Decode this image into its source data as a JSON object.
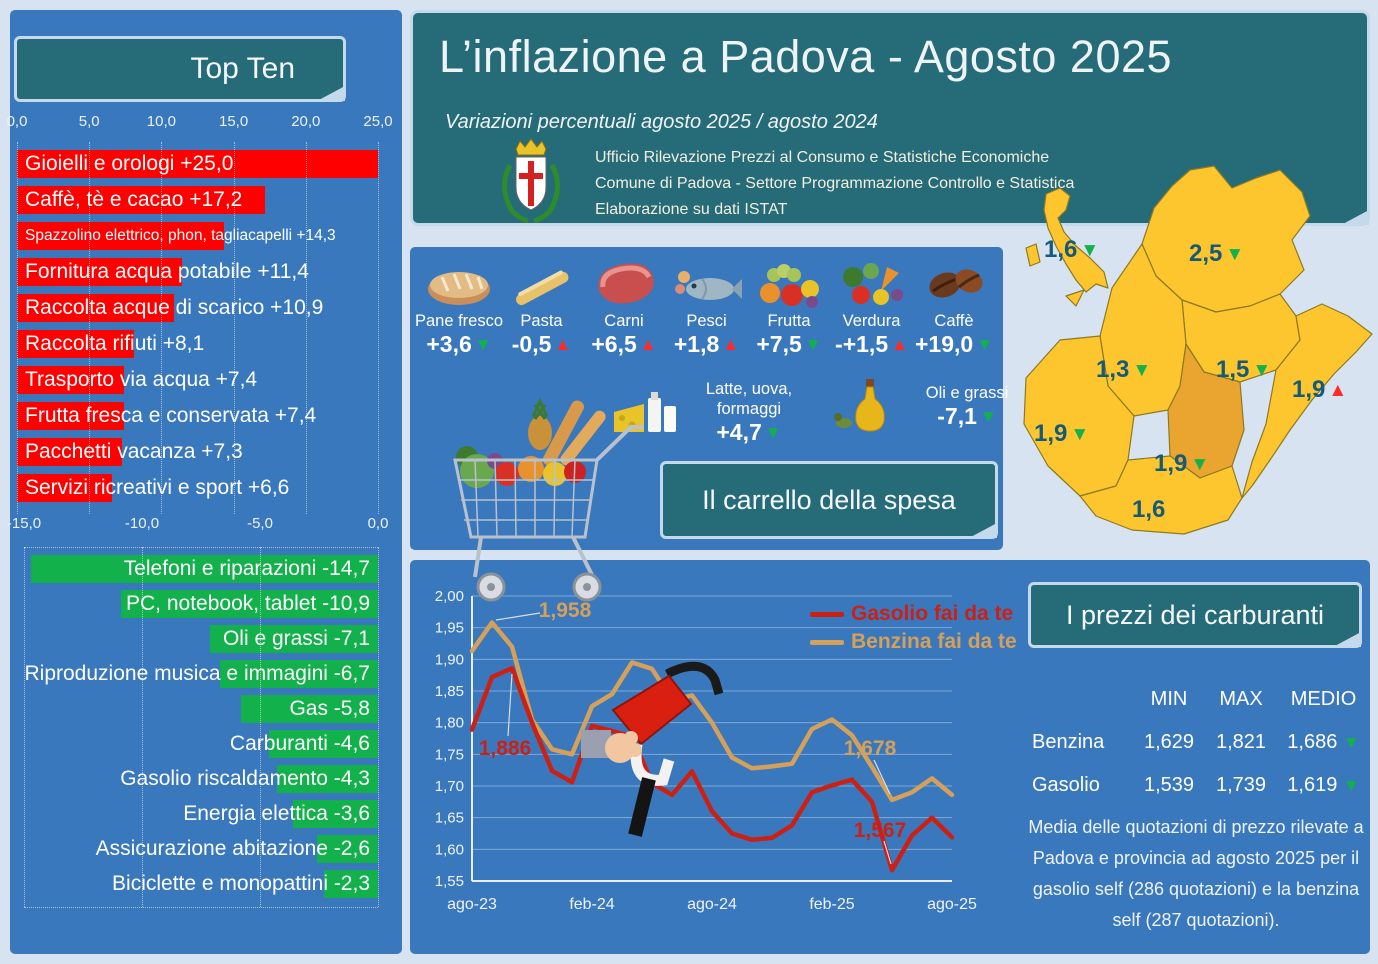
{
  "colors": {
    "page_bg": "#d7e3f1",
    "panel_blue": "#3a78bd",
    "teal": "#266b78",
    "bar_red": "#fe0000",
    "bar_green": "#12b14b",
    "map_gold": "#fdc62f",
    "map_gold_dark": "#e9a52f",
    "gasolio_line": "#cc2015",
    "benzina_line": "#d4a05a"
  },
  "banner": {
    "title": "L’inflazione a Padova - Agosto 2025",
    "subtitle": "Variazioni percentuali agosto 2025 / agosto 2024",
    "org_lines": [
      "Ufficio Rilevazione Prezzi al Consumo e Statistiche Economiche",
      "Comune di Padova -  Settore Programmazione Controllo e Statistica",
      "Elaborazione su dati ISTAT"
    ]
  },
  "top_ten": {
    "title": "Top Ten"
  },
  "carrello": {
    "title": "Il carrello della spesa",
    "items_row1": [
      {
        "icon": "bread-icon",
        "label": "Pane fresco",
        "value": "+3,6",
        "trend": "down"
      },
      {
        "icon": "pasta-icon",
        "label": "Pasta",
        "value": "-0,5",
        "trend": "up"
      },
      {
        "icon": "meat-icon",
        "label": "Carni",
        "value": "+6,5",
        "trend": "up"
      },
      {
        "icon": "fish-icon",
        "label": "Pesci",
        "value": "+1,8",
        "trend": "up"
      },
      {
        "icon": "fruit-icon",
        "label": "Frutta",
        "value": "+7,5",
        "trend": "down"
      },
      {
        "icon": "vegetables-icon",
        "label": "Verdura",
        "value": "-+1,5",
        "trend": "up"
      },
      {
        "icon": "coffee-icon",
        "label": "Caffè",
        "value": "+19,0",
        "trend": "down"
      }
    ],
    "items_row2": [
      {
        "icon": "dairy-icon",
        "label": "Latte, uova, formaggi",
        "value": "+4,7",
        "trend": "down"
      },
      {
        "icon": "oil-icon",
        "label": "Oli e grassi",
        "value": "-7,1",
        "trend": "down"
      }
    ]
  },
  "veneto_map": {
    "labels": [
      {
        "id": "italia",
        "value": "1,6",
        "trend": "down"
      },
      {
        "id": "belluno",
        "value": "2,5",
        "trend": "down"
      },
      {
        "id": "vicenza",
        "value": "1,3",
        "trend": "down"
      },
      {
        "id": "treviso",
        "value": "1,5",
        "trend": "down"
      },
      {
        "id": "venezia",
        "value": "1,9",
        "trend": "up"
      },
      {
        "id": "verona",
        "value": "1,9",
        "trend": "down"
      },
      {
        "id": "padova",
        "value": "1,9",
        "trend": "down"
      },
      {
        "id": "rovigo",
        "value": "1,6",
        "trend": "none"
      }
    ]
  },
  "fuel": {
    "title": "I prezzi dei carburanti",
    "note": "Media delle quotazioni di prezzo rilevate a Padova e provincia ad agosto 2025 per il gasolio self (286 quotazioni) e la benzina self (287 quotazioni).",
    "table": {
      "headers": [
        "MIN",
        "MAX",
        "MEDIO"
      ],
      "rows": [
        {
          "name": "Benzina",
          "min": "1,629",
          "max": "1,821",
          "medio": "1,686",
          "trend": "down"
        },
        {
          "name": "Gasolio",
          "min": "1,539",
          "max": "1,739",
          "medio": "1,619",
          "trend": "down"
        }
      ]
    }
  },
  "chart_data": [
    {
      "type": "bar",
      "title": "Top Ten",
      "orientation": "horizontal",
      "increases": {
        "xlim": [
          0,
          25
        ],
        "ticks": [
          "0,0",
          "5,0",
          "10,0",
          "15,0",
          "20,0",
          "25,0"
        ],
        "color": "#fe0000",
        "items": [
          {
            "text": "Gioielli e orologi +25,0",
            "value": 25.0
          },
          {
            "text": "Caffè, tè e cacao +17,2",
            "value": 17.2
          },
          {
            "text": "Spazzolino elettrico, phon, tagliacapelli +14,3",
            "value": 14.3
          },
          {
            "text": "Fornitura acqua potabile +11,4",
            "value": 11.4
          },
          {
            "text": "Raccolta acque di scarico +10,9",
            "value": 10.9
          },
          {
            "text": "Raccolta rifiuti +8,1",
            "value": 8.1
          },
          {
            "text": "Trasporto via acqua +7,4",
            "value": 7.4
          },
          {
            "text": "Frutta fresca e conservata +7,4",
            "value": 7.4
          },
          {
            "text": "Pacchetti vacanza +7,3",
            "value": 7.3
          },
          {
            "text": "Servizi ricreativi e sport +6,6",
            "value": 6.6
          }
        ]
      },
      "decreases": {
        "xlim": [
          -15,
          0
        ],
        "ticks": [
          "-15,0",
          "-10,0",
          "-5,0",
          "0,0"
        ],
        "color": "#12b14b",
        "items": [
          {
            "text": "Telefoni e riparazioni -14,7",
            "value": -14.7
          },
          {
            "text": "PC, notebook, tablet -10,9",
            "value": -10.9
          },
          {
            "text": "Oli e grassi -7,1",
            "value": -7.1
          },
          {
            "text": "Riproduzione musica e immagini -6,7",
            "value": -6.7
          },
          {
            "text": "Gas -5,8",
            "value": -5.8
          },
          {
            "text": "Carburanti -4,6",
            "value": -4.6
          },
          {
            "text": "Gasolio riscaldamento -4,3",
            "value": -4.3
          },
          {
            "text": "Energia elettica -3,6",
            "value": -3.6
          },
          {
            "text": "Assicurazione abitazione -2,6",
            "value": -2.6
          },
          {
            "text": "Biciclette e monopattini -2,3",
            "value": -2.3
          }
        ]
      }
    },
    {
      "type": "line",
      "title": "I prezzi dei carburanti",
      "x": [
        "ago-23",
        "set-23",
        "ott-23",
        "nov-23",
        "dic-23",
        "gen-24",
        "feb-24",
        "mar-24",
        "apr-24",
        "mag-24",
        "giu-24",
        "lug-24",
        "ago-24",
        "set-24",
        "ott-24",
        "nov-24",
        "dic-24",
        "gen-25",
        "feb-25",
        "mar-25",
        "apr-25",
        "mag-25",
        "giu-25",
        "lug-25",
        "ago-25"
      ],
      "xticks": {
        "labels": [
          "ago-23",
          "feb-24",
          "ago-24",
          "feb-25",
          "ago-25"
        ],
        "indices": [
          0,
          6,
          12,
          18,
          24
        ]
      },
      "ylim": [
        1.55,
        2.0
      ],
      "ytick_step": 0.05,
      "grid": true,
      "legend_position": "top-right",
      "series": [
        {
          "name": "Gasolio fai da te",
          "color": "#cc2015",
          "values": [
            1.789,
            1.872,
            1.886,
            1.8,
            1.724,
            1.706,
            1.795,
            1.787,
            1.778,
            1.705,
            1.686,
            1.723,
            1.66,
            1.625,
            1.615,
            1.618,
            1.638,
            1.69,
            1.701,
            1.71,
            1.675,
            1.567,
            1.622,
            1.65,
            1.619
          ]
        },
        {
          "name": "Benzina fai da te",
          "color": "#d4a05a",
          "values": [
            1.913,
            1.958,
            1.92,
            1.805,
            1.758,
            1.75,
            1.826,
            1.845,
            1.895,
            1.885,
            1.836,
            1.843,
            1.8,
            1.745,
            1.728,
            1.731,
            1.735,
            1.79,
            1.805,
            1.78,
            1.73,
            1.678,
            1.69,
            1.712,
            1.686
          ]
        }
      ],
      "annotations": [
        {
          "text": "1,958",
          "series": 1,
          "index": 1
        },
        {
          "text": "1,886",
          "series": 0,
          "index": 2
        },
        {
          "text": "1,678",
          "series": 1,
          "index": 21
        },
        {
          "text": "1,567",
          "series": 0,
          "index": 21
        }
      ]
    }
  ]
}
